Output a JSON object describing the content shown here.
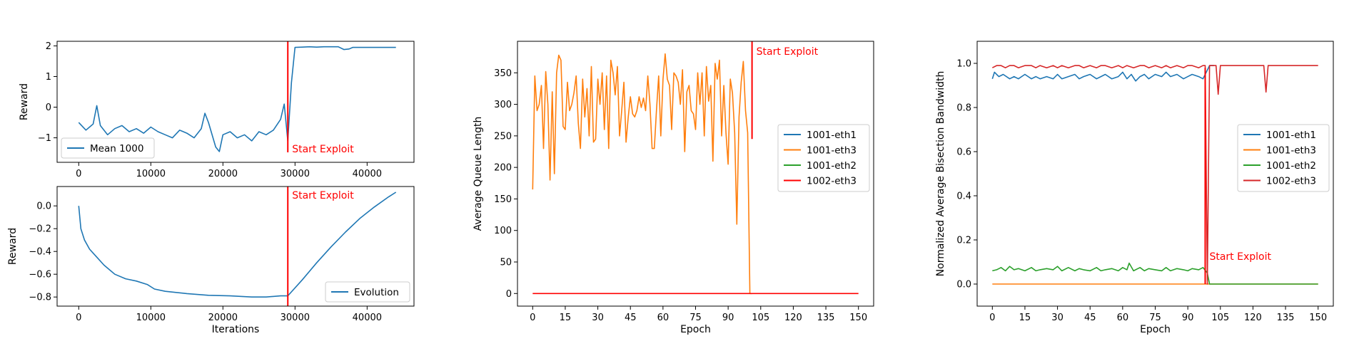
{
  "colors": {
    "blue": "#1f77b4",
    "orange": "#ff7f0e",
    "green": "#2ca02c",
    "red": "#d62728",
    "exploit_line": "#ff0000"
  },
  "chart_data": [
    {
      "id": "reward_mean",
      "type": "line",
      "xlabel": "",
      "ylabel": "Reward",
      "xlim": [
        -3000,
        46500
      ],
      "ylim": [
        -1.8,
        2.15
      ],
      "xticks": [
        0,
        10000,
        20000,
        30000,
        40000
      ],
      "xtick_labels": [
        "0",
        "10000",
        "20000",
        "30000",
        "40000"
      ],
      "yticks": [
        -1,
        0,
        1,
        2
      ],
      "ytick_labels": [
        "−1",
        "0",
        "1",
        "2"
      ],
      "legend": [
        "Mean 1000"
      ],
      "legend_position": "lower-left",
      "annotation": {
        "text": "Start Exploit",
        "x": 29000
      },
      "series": [
        {
          "name": "Mean 1000",
          "color": "#1f77b4",
          "x": [
            0,
            1000,
            2000,
            2500,
            3000,
            4000,
            5000,
            6000,
            7000,
            8000,
            9000,
            10000,
            11000,
            12000,
            13000,
            14000,
            15000,
            16000,
            17000,
            17500,
            18000,
            19000,
            19500,
            20000,
            21000,
            22000,
            23000,
            24000,
            25000,
            26000,
            27000,
            28000,
            28500,
            29000,
            29500,
            30000,
            31000,
            32000,
            33000,
            34000,
            35000,
            36000,
            36800,
            37500,
            38000,
            39000,
            40000,
            42000,
            44000
          ],
          "values": [
            -0.5,
            -0.75,
            -0.55,
            0.05,
            -0.6,
            -0.9,
            -0.7,
            -0.6,
            -0.8,
            -0.7,
            -0.85,
            -0.65,
            -0.8,
            -0.9,
            -1.0,
            -0.75,
            -0.85,
            -1.0,
            -0.7,
            -0.2,
            -0.5,
            -1.3,
            -1.45,
            -0.9,
            -0.8,
            -1.0,
            -0.9,
            -1.1,
            -0.8,
            -0.9,
            -0.75,
            -0.4,
            0.1,
            -1.1,
            0.8,
            1.95,
            1.96,
            1.97,
            1.96,
            1.97,
            1.97,
            1.97,
            1.88,
            1.9,
            1.95,
            1.95,
            1.95,
            1.95,
            1.95
          ]
        }
      ]
    },
    {
      "id": "reward_evolution",
      "type": "line",
      "xlabel": "Iterations",
      "ylabel": "Reward",
      "xlim": [
        -3000,
        46500
      ],
      "ylim": [
        -0.88,
        0.17
      ],
      "xticks": [
        0,
        10000,
        20000,
        30000,
        40000
      ],
      "xtick_labels": [
        "0",
        "10000",
        "20000",
        "30000",
        "40000"
      ],
      "yticks": [
        -0.8,
        -0.6,
        -0.4,
        -0.2,
        0.0
      ],
      "ytick_labels": [
        "−0.8",
        "−0.6",
        "−0.4",
        "−0.2",
        "0.0"
      ],
      "legend": [
        "Evolution"
      ],
      "legend_position": "lower-right",
      "annotation": {
        "text": "Start Exploit",
        "x": 29000
      },
      "series": [
        {
          "name": "Evolution",
          "color": "#1f77b4",
          "x": [
            0,
            300,
            800,
            1500,
            2500,
            3500,
            5000,
            6500,
            8000,
            9500,
            10500,
            12000,
            15000,
            18000,
            21000,
            24000,
            26000,
            28000,
            29000,
            31000,
            33000,
            35000,
            37000,
            39000,
            41000,
            43000,
            44000
          ],
          "values": [
            0.0,
            -0.2,
            -0.3,
            -0.38,
            -0.45,
            -0.52,
            -0.6,
            -0.64,
            -0.66,
            -0.69,
            -0.73,
            -0.75,
            -0.77,
            -0.785,
            -0.79,
            -0.8,
            -0.8,
            -0.79,
            -0.79,
            -0.65,
            -0.5,
            -0.36,
            -0.23,
            -0.11,
            -0.01,
            0.08,
            0.12
          ]
        }
      ]
    },
    {
      "id": "queue_length",
      "type": "line",
      "xlabel": "Epoch",
      "ylabel": "Average Queue Length",
      "xlim": [
        -7,
        157
      ],
      "ylim": [
        -20,
        400
      ],
      "xticks": [
        0,
        15,
        30,
        45,
        60,
        75,
        90,
        105,
        120,
        135,
        150
      ],
      "xtick_labels": [
        "0",
        "15",
        "30",
        "45",
        "60",
        "75",
        "90",
        "105",
        "120",
        "135",
        "150"
      ],
      "yticks": [
        0,
        50,
        100,
        150,
        200,
        250,
        300,
        350
      ],
      "ytick_labels": [
        "0",
        "50",
        "100",
        "150",
        "200",
        "250",
        "300",
        "350"
      ],
      "legend": [
        "1001-eth1",
        "1001-eth3",
        "1001-eth2",
        "1002-eth3"
      ],
      "legend_position": "center-right",
      "annotation": {
        "text": "Start Exploit",
        "x": 101
      },
      "series": [
        {
          "name": "1001-eth3",
          "color": "#ff7f0e",
          "x": [
            0,
            1,
            2,
            3,
            4,
            5,
            6,
            7,
            8,
            9,
            10,
            11,
            12,
            13,
            14,
            15,
            16,
            17,
            18,
            19,
            20,
            21,
            22,
            23,
            24,
            25,
            26,
            27,
            28,
            29,
            30,
            31,
            32,
            33,
            34,
            35,
            36,
            37,
            38,
            39,
            40,
            41,
            42,
            43,
            44,
            45,
            46,
            47,
            48,
            49,
            50,
            51,
            52,
            53,
            54,
            55,
            56,
            57,
            58,
            59,
            60,
            61,
            62,
            63,
            64,
            65,
            66,
            67,
            68,
            69,
            70,
            71,
            72,
            73,
            74,
            75,
            76,
            77,
            78,
            79,
            80,
            81,
            82,
            83,
            84,
            85,
            86,
            87,
            88,
            89,
            90,
            91,
            92,
            93,
            94,
            95,
            96,
            97,
            98,
            99,
            100,
            101
          ],
          "values": [
            165,
            345,
            290,
            300,
            330,
            230,
            352,
            300,
            180,
            320,
            190,
            350,
            378,
            370,
            265,
            260,
            335,
            290,
            300,
            318,
            345,
            270,
            230,
            340,
            280,
            325,
            250,
            360,
            240,
            245,
            340,
            300,
            350,
            260,
            345,
            230,
            370,
            350,
            315,
            360,
            250,
            290,
            335,
            240,
            280,
            312,
            285,
            280,
            290,
            312,
            295,
            310,
            290,
            345,
            300,
            230,
            230,
            290,
            345,
            250,
            340,
            380,
            340,
            330,
            260,
            350,
            345,
            335,
            300,
            355,
            225,
            320,
            330,
            290,
            285,
            260,
            350,
            300,
            350,
            250,
            360,
            305,
            330,
            210,
            365,
            340,
            370,
            250,
            330,
            255,
            205,
            340,
            318,
            255,
            110,
            280,
            335,
            368,
            290,
            255,
            0,
            0
          ]
        },
        {
          "name": "1002-eth3",
          "color": "#ff0000",
          "x": [
            0,
            150
          ],
          "values": [
            0,
            0
          ]
        }
      ]
    },
    {
      "id": "bisection_bandwidth",
      "type": "line",
      "xlabel": "Epoch",
      "ylabel": "Normalized Average Bisection Bandwidth",
      "xlim": [
        -7,
        157
      ],
      "ylim": [
        -0.1,
        1.1
      ],
      "xticks": [
        0,
        15,
        30,
        45,
        60,
        75,
        90,
        105,
        120,
        135,
        150
      ],
      "xtick_labels": [
        "0",
        "15",
        "30",
        "45",
        "60",
        "75",
        "90",
        "105",
        "120",
        "135",
        "150"
      ],
      "yticks": [
        0.0,
        0.2,
        0.4,
        0.6,
        0.8,
        1.0
      ],
      "ytick_labels": [
        "0.0",
        "0.2",
        "0.4",
        "0.6",
        "0.8",
        "1.0"
      ],
      "legend": [
        "1001-eth1",
        "1001-eth3",
        "1001-eth2",
        "1002-eth3"
      ],
      "legend_position": "center-right",
      "annotation": {
        "text": "Start Exploit",
        "x": 98
      },
      "series": [
        {
          "name": "1001-eth1",
          "color": "#1f77b4",
          "x": [
            0,
            1,
            3,
            5,
            8,
            10,
            12,
            15,
            18,
            20,
            22,
            25,
            28,
            30,
            32,
            35,
            38,
            40,
            42,
            45,
            48,
            50,
            52,
            55,
            58,
            60,
            62,
            64,
            66,
            68,
            70,
            72,
            75,
            78,
            80,
            82,
            85,
            88,
            90,
            92,
            95,
            97,
            98,
            100,
            102
          ],
          "values": [
            0.93,
            0.96,
            0.94,
            0.95,
            0.93,
            0.94,
            0.93,
            0.95,
            0.93,
            0.94,
            0.93,
            0.94,
            0.93,
            0.95,
            0.93,
            0.94,
            0.95,
            0.93,
            0.94,
            0.95,
            0.93,
            0.94,
            0.95,
            0.93,
            0.94,
            0.96,
            0.93,
            0.95,
            0.92,
            0.94,
            0.95,
            0.93,
            0.95,
            0.94,
            0.96,
            0.94,
            0.95,
            0.93,
            0.94,
            0.95,
            0.94,
            0.93,
            0.95,
            0.99,
            0.99
          ]
        },
        {
          "name": "1001-eth3",
          "color": "#ff7f0e",
          "x": [
            0,
            150
          ],
          "values": [
            0,
            0
          ]
        },
        {
          "name": "1001-eth2",
          "color": "#2ca02c",
          "x": [
            0,
            2,
            4,
            6,
            8,
            10,
            12,
            15,
            18,
            20,
            22,
            25,
            28,
            30,
            32,
            35,
            38,
            40,
            42,
            45,
            48,
            50,
            52,
            55,
            58,
            60,
            62,
            63,
            65,
            68,
            70,
            72,
            75,
            78,
            80,
            82,
            85,
            88,
            90,
            92,
            95,
            97,
            99,
            100,
            150
          ],
          "values": [
            0.06,
            0.065,
            0.075,
            0.06,
            0.08,
            0.065,
            0.07,
            0.06,
            0.075,
            0.06,
            0.065,
            0.07,
            0.065,
            0.08,
            0.06,
            0.075,
            0.06,
            0.07,
            0.065,
            0.06,
            0.075,
            0.06,
            0.065,
            0.07,
            0.06,
            0.075,
            0.065,
            0.095,
            0.06,
            0.075,
            0.06,
            0.07,
            0.065,
            0.06,
            0.075,
            0.06,
            0.07,
            0.065,
            0.06,
            0.07,
            0.065,
            0.075,
            0.05,
            0.0,
            0.0
          ]
        },
        {
          "name": "1002-eth3",
          "color": "#d62728",
          "x": [
            0,
            2,
            4,
            6,
            8,
            10,
            12,
            15,
            18,
            20,
            22,
            25,
            28,
            30,
            32,
            35,
            38,
            40,
            42,
            45,
            48,
            50,
            52,
            55,
            58,
            60,
            62,
            65,
            68,
            70,
            72,
            75,
            78,
            80,
            82,
            85,
            88,
            90,
            92,
            95,
            97,
            98,
            99,
            100,
            102,
            103,
            104,
            105,
            108,
            110,
            112,
            115,
            118,
            120,
            122,
            124,
            125,
            126,
            127,
            130,
            132,
            135,
            138,
            140,
            142,
            145,
            148,
            150
          ],
          "values": [
            0.98,
            0.99,
            0.99,
            0.98,
            0.99,
            0.99,
            0.98,
            0.99,
            0.99,
            0.98,
            0.99,
            0.98,
            0.99,
            0.98,
            0.99,
            0.98,
            0.99,
            0.99,
            0.98,
            0.99,
            0.98,
            0.99,
            0.99,
            0.98,
            0.99,
            0.98,
            0.99,
            0.98,
            0.99,
            0.99,
            0.98,
            0.99,
            0.98,
            0.99,
            0.98,
            0.99,
            0.98,
            0.99,
            0.99,
            0.98,
            0.99,
            0.99,
            0.0,
            0.99,
            0.99,
            0.99,
            0.86,
            0.99,
            0.99,
            0.99,
            0.99,
            0.99,
            0.99,
            0.99,
            0.99,
            0.99,
            0.99,
            0.87,
            0.99,
            0.99,
            0.99,
            0.99,
            0.99,
            0.99,
            0.99,
            0.99,
            0.99,
            0.99
          ]
        }
      ]
    }
  ]
}
